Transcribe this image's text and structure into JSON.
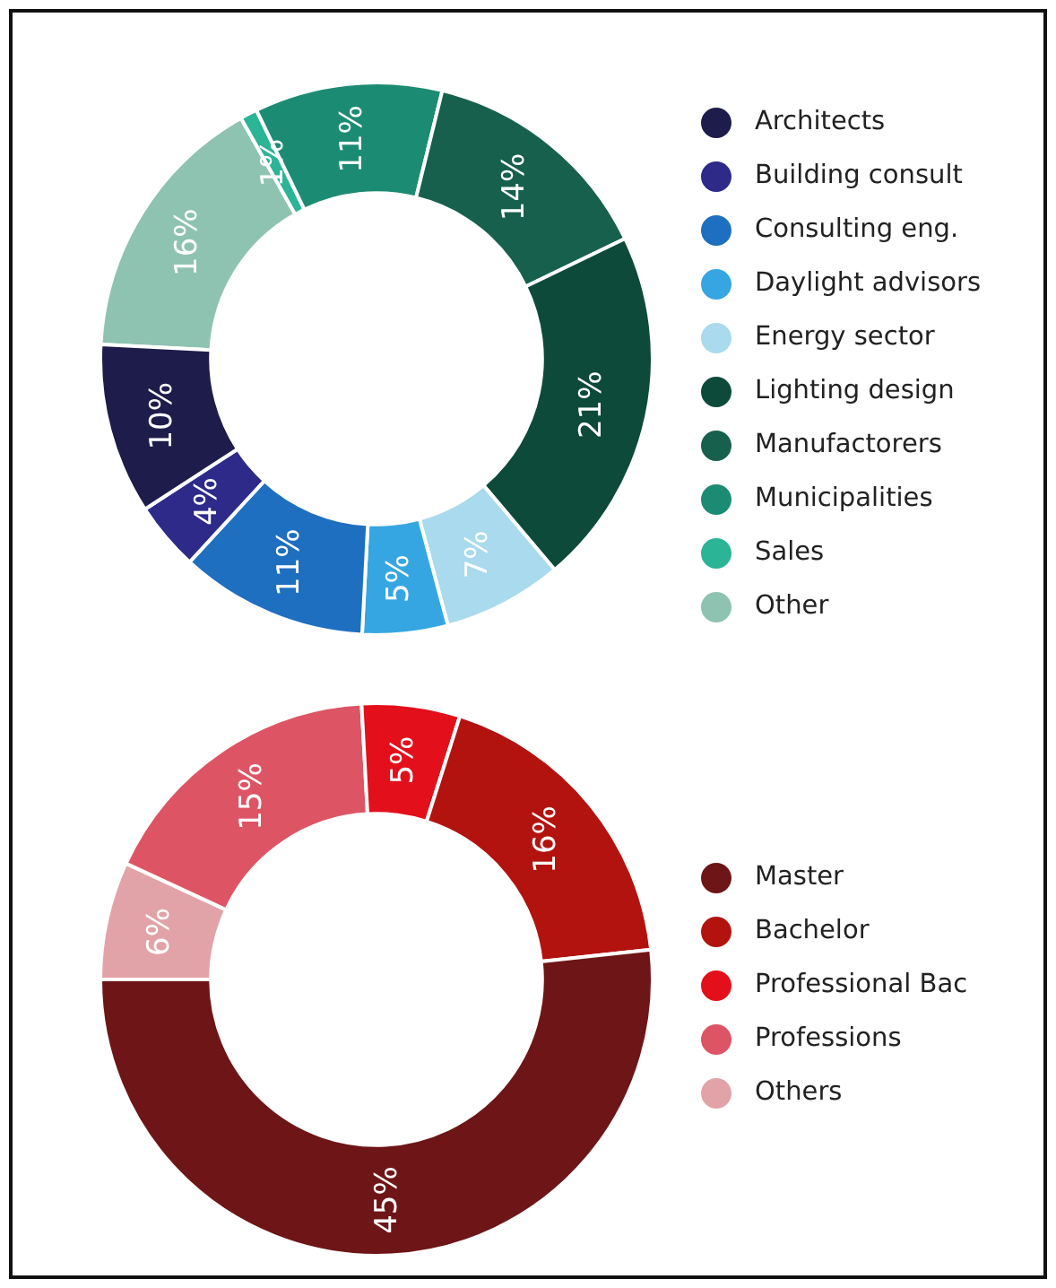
{
  "chart_data": [
    {
      "type": "donut",
      "categories": [
        "Architects",
        "Building consult",
        "Consulting eng.",
        "Daylight advisors",
        "Energy sector",
        "Lighting design",
        "Manufactorers",
        "Municipalities",
        "Sales",
        "Other"
      ],
      "values": [
        10,
        4,
        11,
        5,
        7,
        21,
        14,
        11,
        1,
        16
      ],
      "colors": [
        "#1e1c4a",
        "#2d2a8a",
        "#1f6fc0",
        "#36a6e3",
        "#a9daed",
        "#0d4a3a",
        "#17604d",
        "#1c8b73",
        "#2bb496",
        "#8fc3b1"
      ],
      "value_labels": [
        "10%",
        "4%",
        "11%",
        "5%",
        "7%",
        "21%",
        "14%",
        "11%",
        "1%",
        "16%"
      ],
      "legend": "right"
    },
    {
      "type": "donut",
      "categories": [
        "Master",
        "Bachelor",
        "Professional Bac",
        "Professions",
        "Others"
      ],
      "values": [
        45,
        16,
        5,
        15,
        6
      ],
      "colors": [
        "#6e1517",
        "#b3130f",
        "#e3101b",
        "#dd5565",
        "#e2a3a8"
      ],
      "value_labels": [
        "45%",
        "16%",
        "5%",
        "15%",
        "6%"
      ],
      "legend": "right"
    }
  ]
}
